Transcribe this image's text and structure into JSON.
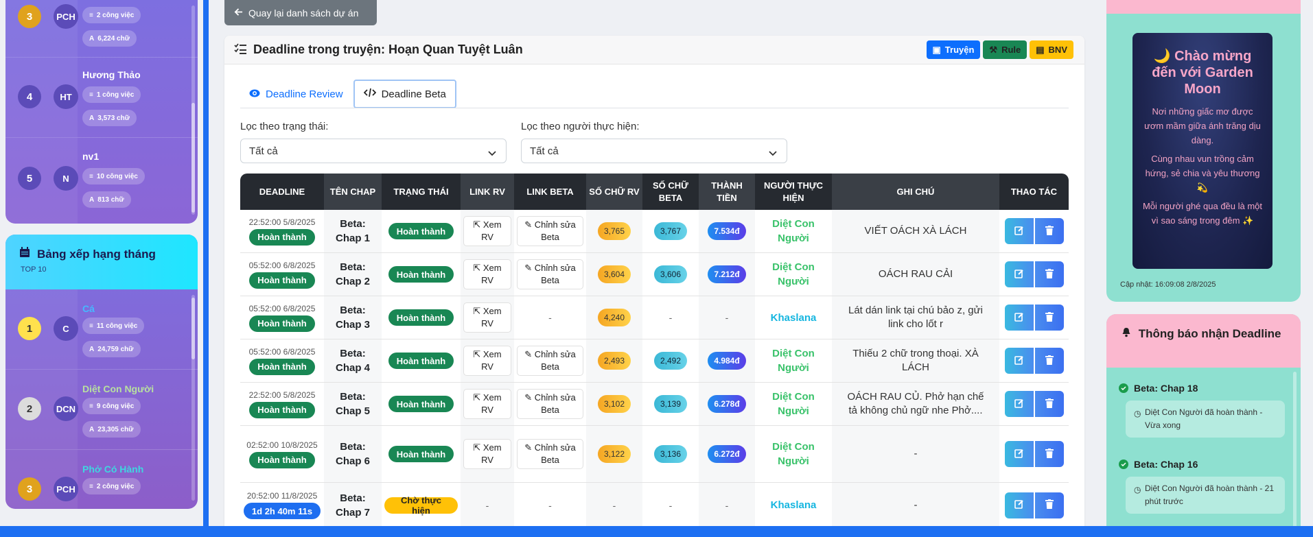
{
  "colors": {
    "accent": "#1d6ff2",
    "success": "#198754",
    "purple": "#7d6fe0"
  },
  "sidebar_top": {
    "rows": [
      {
        "rank": "3",
        "initials": "PCH",
        "name": "",
        "tasks": "2 công việc",
        "words": "6,224 chữ"
      },
      {
        "rank": "4",
        "initials": "HT",
        "name": "Hương Thảo",
        "tasks": "1 công việc",
        "words": "3,573 chữ"
      },
      {
        "rank": "5",
        "initials": "N",
        "name": "nv1",
        "tasks": "10 công việc",
        "words": "813 chữ"
      }
    ]
  },
  "monthly": {
    "title": "Bảng xếp hạng tháng",
    "subtitle": "TOP 10",
    "rows": [
      {
        "rank": "1",
        "initials": "C",
        "name": "Cá",
        "tasks": "11 công việc",
        "words": "24,759 chữ"
      },
      {
        "rank": "2",
        "initials": "DCN",
        "name": "Diệt Con Người",
        "tasks": "9 công việc",
        "words": "23,305 chữ"
      },
      {
        "rank": "3",
        "initials": "PCH",
        "name": "Phở Có Hành",
        "tasks": "2 công việc",
        "words": ""
      }
    ]
  },
  "back_label": "Quay lại danh sách dự án",
  "page_title": "Deadline trong truyện: Hoạn Quan Tuyệt Luân",
  "header_buttons": {
    "truyen": "Truyện",
    "rule": "Rule",
    "bnv": "BNV"
  },
  "tabs": {
    "review": "Deadline Review",
    "beta": "Deadline Beta"
  },
  "filters": {
    "status_label": "Lọc theo trạng thái:",
    "status_value": "Tất cả",
    "person_label": "Lọc theo người thực hiện:",
    "person_value": "Tất cả"
  },
  "table": {
    "headers": {
      "deadline": "DEADLINE",
      "ten_chap": "TÊN CHAP",
      "trang_thai": "TRẠNG THÁI",
      "link_rv": "LINK RV",
      "link_beta": "LINK BETA",
      "so_chu_rv": "SỐ CHỮ RV",
      "so_chu_beta": "SỐ CHỮ BETA",
      "thanh_tien": "THÀNH TIỀN",
      "nguoi": "NGƯỜI THỰC HIỆN",
      "ghi_chu": "GHI CHÚ",
      "thao_tac": "THAO TÁC"
    },
    "link_rv_text": "Xem RV",
    "link_beta_text": "Chỉnh sửa Beta",
    "rows": [
      {
        "time": "22:52:00 5/8/2025",
        "dl_status": "Hoàn thành",
        "chap": "Beta: Chap 1",
        "status": "Hoàn thành",
        "rv": "3,765",
        "beta": "3,767",
        "money": "7.534đ",
        "person": "Diệt Con Người",
        "note": "VIẾT OÁCH XÀ LÁCH"
      },
      {
        "time": "05:52:00 6/8/2025",
        "dl_status": "Hoàn thành",
        "chap": "Beta: Chap 2",
        "status": "Hoàn thành",
        "rv": "3,604",
        "beta": "3,606",
        "money": "7.212đ",
        "person": "Diệt Con Người",
        "note": "OÁCH RAU CẢI"
      },
      {
        "time": "05:52:00 6/8/2025",
        "dl_status": "Hoàn thành",
        "chap": "Beta: Chap 3",
        "status": "Hoàn thành",
        "rv": "4,240",
        "beta": "-",
        "money": "-",
        "person": "Khaslana",
        "note": "Lát dán link tại chú bảo z, gửi link cho lốt r"
      },
      {
        "time": "05:52:00 6/8/2025",
        "dl_status": "Hoàn thành",
        "chap": "Beta: Chap 4",
        "status": "Hoàn thành",
        "rv": "2,493",
        "beta": "2,492",
        "money": "4.984đ",
        "person": "Diệt Con Người",
        "note": "Thiếu 2 chữ trong thoại. XÀ LÁCH"
      },
      {
        "time": "22:52:00 5/8/2025",
        "dl_status": "Hoàn thành",
        "chap": "Beta: Chap 5",
        "status": "Hoàn thành",
        "rv": "3,102",
        "beta": "3,139",
        "money": "6.278đ",
        "person": "Diệt Con Người",
        "note": "OÁCH RAU CỦ. Phở hạn chế tả không chủ ngữ nhe Phở...."
      },
      {
        "time": "02:52:00 10/8/2025",
        "dl_status": "Hoàn thành",
        "chap": "Beta: Chap 6",
        "status": "Hoàn thành",
        "rv": "3,122",
        "beta": "3,136",
        "money": "6.272đ",
        "person": "Diệt Con Người",
        "note": "-"
      },
      {
        "time": "20:52:00 11/8/2025",
        "dl_status": "1d 2h 40m 11s",
        "chap": "Beta: Chap 7",
        "status": "Chờ thực hiện",
        "rv": "-",
        "beta": "-",
        "money": "-",
        "person": "Khaslana",
        "note": "-"
      }
    ]
  },
  "garden": {
    "title": "🌙 Chào mừng đến với Garden Moon",
    "p1": "Nơi những giấc mơ được ươm mầm giữa ánh trăng dịu dàng.",
    "p2": "Cùng nhau vun trồng cảm hứng, sẻ chia và yêu thương 💫",
    "p3": "Mỗi người ghé qua đều là một vì sao sáng trong đêm ✨",
    "updated": "Cập nhật: 16:09:08 2/8/2025"
  },
  "notifications": {
    "title": "Thông báo nhận Deadline",
    "items": [
      {
        "title": "Beta: Chap 18",
        "body": "Diệt Con Người đã hoàn thành - Vừa xong"
      },
      {
        "title": "Beta: Chap 16",
        "body": "Diệt Con Người đã hoàn thành - 21 phút trước"
      }
    ]
  }
}
